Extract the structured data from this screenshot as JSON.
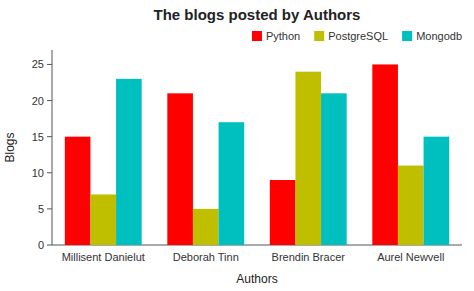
{
  "chart_data": {
    "type": "bar",
    "title": "The blogs posted by Authors",
    "xlabel": "Authors",
    "ylabel": "Blogs",
    "categories": [
      "Millisent Danielut",
      "Deborah Tinn",
      "Brendin Bracer",
      "Aurel Newvell"
    ],
    "series": [
      {
        "name": "Python",
        "color": "#ff0000",
        "values": [
          15,
          21,
          9,
          25
        ]
      },
      {
        "name": "PostgreSQL",
        "color": "#bfbf00",
        "values": [
          7,
          5,
          24,
          11
        ]
      },
      {
        "name": "Mongodb",
        "color": "#00bfbf",
        "values": [
          23,
          17,
          21,
          15
        ]
      }
    ],
    "ylim": [
      0,
      27
    ],
    "yticks": [
      0,
      5,
      10,
      15,
      20,
      25
    ],
    "legend": "upper right"
  }
}
